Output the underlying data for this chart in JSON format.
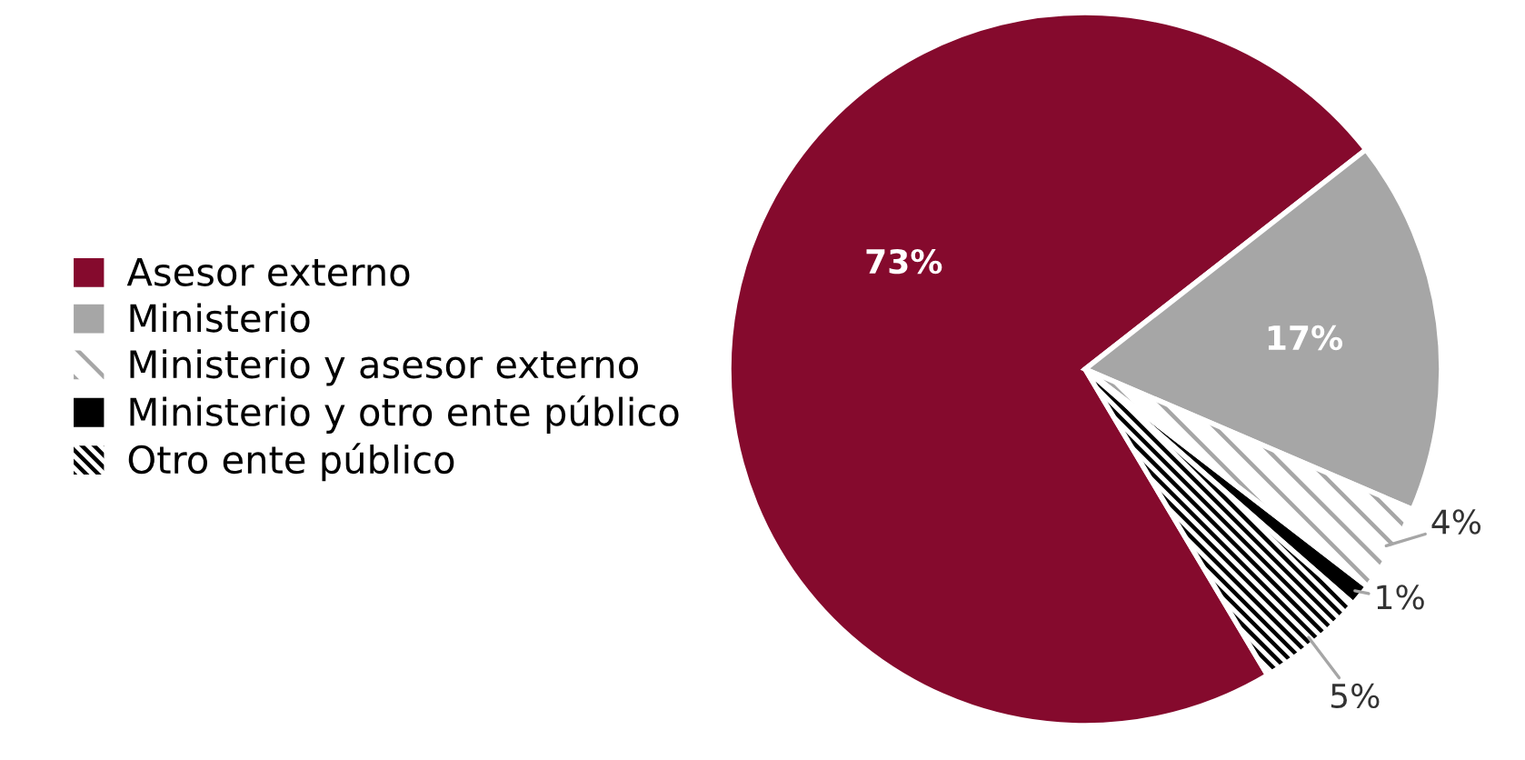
{
  "chart_data": {
    "type": "pie",
    "categories": [
      "Asesor externo",
      "Ministerio",
      "Ministerio y asesor externo",
      "Ministerio y otro ente público",
      "Otro ente público"
    ],
    "values": [
      73,
      17,
      4,
      1,
      5
    ],
    "colors": [
      "#850a2d",
      "#a6a6a6",
      "#a6a6a6",
      "#000000",
      "#000000"
    ],
    "value_labels": [
      "73%",
      "17%",
      "4%",
      "1%",
      "5%"
    ],
    "legend": "left"
  }
}
